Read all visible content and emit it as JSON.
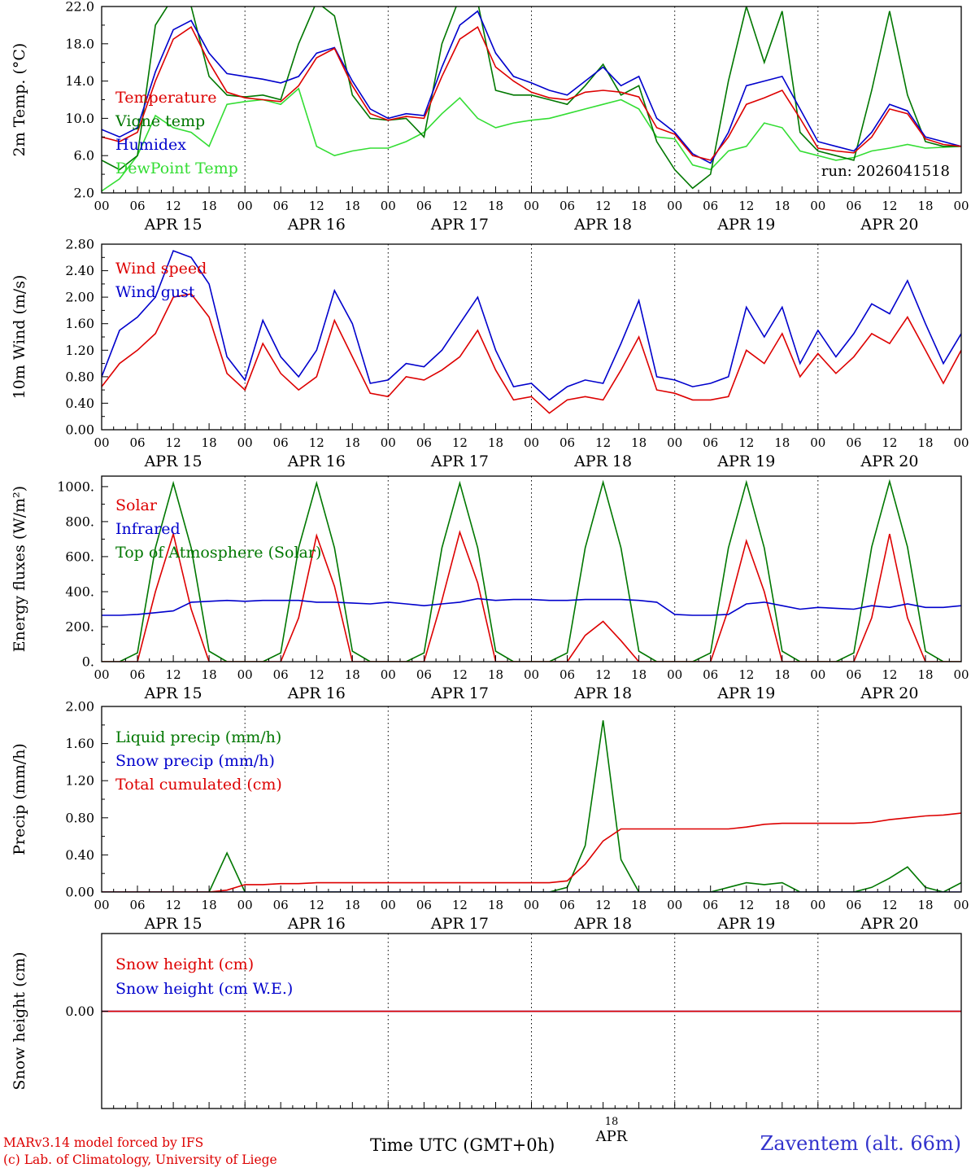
{
  "meta": {
    "run_label": "run: 2026041518",
    "footer_left1": "MARv3.14 model forced by IFS",
    "footer_left2": "(c) Lab. of Climatology, University of Liege",
    "footer_center": "Time UTC (GMT+0h)",
    "footer_date_top": "18",
    "footer_date_bottom": "APR",
    "footer_right": "Zaventem (alt. 66m)"
  },
  "x_axis": {
    "hours_start": 0,
    "hours_end": 144,
    "step": 3,
    "major_tick_hours": 6,
    "minor_tick_hours": 2,
    "hour_labels": [
      "00",
      "06",
      "12",
      "18"
    ],
    "day_labels": [
      "APR 15",
      "APR 16",
      "APR 17",
      "APR 18",
      "APR 19",
      "APR 20"
    ]
  },
  "chart_data": [
    {
      "type": "line",
      "ylabel": "2m Temp. (°C)",
      "ylim": [
        2,
        22
      ],
      "ytick_values": [
        2,
        6,
        10,
        14,
        18,
        22
      ],
      "ytick_labels": [
        "2.0",
        "6.0",
        "10.0",
        "14.0",
        "18.0",
        "22.0"
      ],
      "legend": [
        {
          "label": "Temperature",
          "color": "#dd0000"
        },
        {
          "label": "Vigne temp",
          "color": "#007700"
        },
        {
          "label": "Humidex",
          "color": "#0000cc"
        },
        {
          "label": "DewPoint Temp",
          "color": "#33dd33"
        }
      ],
      "annotation": {
        "text": "run: 2026041518"
      },
      "series": [
        {
          "name": "DewPoint Temp",
          "color": "#33dd33",
          "values": [
            2.2,
            3.5,
            6.0,
            10.3,
            9.0,
            8.5,
            7.0,
            11.5,
            11.8,
            12.0,
            11.5,
            13.2,
            7.0,
            6.0,
            6.5,
            6.8,
            6.8,
            7.5,
            8.5,
            10.5,
            12.2,
            10.0,
            9.0,
            9.5,
            9.8,
            10.0,
            10.5,
            11.0,
            11.5,
            12.0,
            11.0,
            8.0,
            7.8,
            5.0,
            4.5,
            6.5,
            7.0,
            9.5,
            9.0,
            6.5,
            6.0,
            5.5,
            5.8,
            6.5,
            6.8,
            7.2,
            6.8,
            6.9,
            7.0
          ]
        },
        {
          "name": "Vigne temp",
          "color": "#007700",
          "values": [
            5.5,
            4.5,
            6.0,
            20.0,
            23.0,
            22.0,
            14.5,
            12.5,
            12.3,
            12.5,
            12.0,
            18.0,
            22.5,
            21.0,
            12.5,
            10.0,
            9.8,
            10.0,
            8.0,
            18.0,
            23.0,
            22.5,
            13.0,
            12.5,
            12.5,
            12.0,
            11.5,
            13.5,
            15.8,
            12.5,
            13.5,
            7.5,
            4.5,
            2.5,
            4.0,
            14.0,
            22.0,
            16.0,
            21.5,
            8.5,
            6.5,
            6.0,
            5.5,
            13.0,
            21.5,
            12.5,
            7.5,
            7.0,
            7.0
          ]
        },
        {
          "name": "Humidex",
          "color": "#0000cc",
          "values": [
            8.8,
            8.0,
            9.0,
            15.0,
            19.5,
            20.5,
            17.0,
            14.8,
            14.5,
            14.2,
            13.8,
            14.5,
            17.0,
            17.6,
            14.0,
            11.0,
            10.0,
            10.5,
            10.3,
            15.5,
            20.0,
            21.5,
            17.0,
            14.5,
            13.8,
            13.0,
            12.5,
            14.0,
            15.5,
            13.5,
            14.5,
            10.0,
            8.5,
            6.2,
            5.2,
            8.5,
            13.5,
            14.0,
            14.5,
            11.0,
            7.5,
            7.0,
            6.5,
            8.5,
            11.5,
            10.8,
            8.0,
            7.5,
            7.0
          ]
        },
        {
          "name": "Temperature",
          "color": "#dd0000",
          "values": [
            8.0,
            7.5,
            8.5,
            14.0,
            18.5,
            19.8,
            16.0,
            12.8,
            12.2,
            12.0,
            11.8,
            13.5,
            16.5,
            17.5,
            13.5,
            10.5,
            9.8,
            10.2,
            10.0,
            14.5,
            18.5,
            19.8,
            15.5,
            14.0,
            12.8,
            12.2,
            12.0,
            12.8,
            13.0,
            12.8,
            12.3,
            9.0,
            8.3,
            6.0,
            5.5,
            8.0,
            11.5,
            12.2,
            13.0,
            10.0,
            6.8,
            6.5,
            6.3,
            8.0,
            11.0,
            10.5,
            7.8,
            7.2,
            7.0
          ]
        }
      ]
    },
    {
      "type": "line",
      "ylabel": "10m Wind (m/s)",
      "ylim": [
        0,
        2.8
      ],
      "ytick_values": [
        0,
        0.4,
        0.8,
        1.2,
        1.6,
        2.0,
        2.4,
        2.8
      ],
      "ytick_labels": [
        "0.00",
        "0.40",
        "0.80",
        "1.20",
        "1.60",
        "2.00",
        "2.40",
        "2.80"
      ],
      "legend": [
        {
          "label": "Wind speed",
          "color": "#dd0000"
        },
        {
          "label": "Wind gust",
          "color": "#0000cc"
        }
      ],
      "series": [
        {
          "name": "Wind gust",
          "color": "#0000cc",
          "values": [
            0.8,
            1.5,
            1.7,
            2.0,
            2.7,
            2.6,
            2.2,
            1.1,
            0.75,
            1.65,
            1.1,
            0.8,
            1.2,
            2.1,
            1.6,
            0.7,
            0.75,
            1.0,
            0.95,
            1.2,
            1.6,
            2.0,
            1.2,
            0.65,
            0.7,
            0.45,
            0.65,
            0.75,
            0.7,
            1.3,
            1.95,
            0.8,
            0.75,
            0.65,
            0.7,
            0.8,
            1.85,
            1.4,
            1.85,
            1.0,
            1.5,
            1.1,
            1.45,
            1.9,
            1.75,
            2.25,
            1.6,
            1.0,
            1.45
          ]
        },
        {
          "name": "Wind speed",
          "color": "#dd0000",
          "values": [
            0.65,
            1.0,
            1.2,
            1.45,
            2.0,
            2.05,
            1.7,
            0.85,
            0.6,
            1.3,
            0.85,
            0.6,
            0.8,
            1.65,
            1.1,
            0.55,
            0.5,
            0.8,
            0.75,
            0.9,
            1.1,
            1.5,
            0.9,
            0.45,
            0.5,
            0.25,
            0.45,
            0.5,
            0.45,
            0.9,
            1.4,
            0.6,
            0.55,
            0.45,
            0.45,
            0.5,
            1.2,
            1.0,
            1.45,
            0.8,
            1.15,
            0.85,
            1.1,
            1.45,
            1.3,
            1.7,
            1.2,
            0.7,
            1.2
          ]
        }
      ]
    },
    {
      "type": "line",
      "ylabel": "Energy fluxes (W/m²)",
      "ylim": [
        0,
        1060
      ],
      "ytick_values": [
        0,
        200,
        400,
        600,
        800,
        1000
      ],
      "ytick_labels": [
        "0.",
        "200.",
        "400.",
        "600.",
        "800.",
        "1000."
      ],
      "legend": [
        {
          "label": "Solar",
          "color": "#dd0000"
        },
        {
          "label": "Infrared",
          "color": "#0000cc"
        },
        {
          "label": "Top of Atmosphere (Solar)",
          "color": "#007700"
        }
      ],
      "series": [
        {
          "name": "Top of Atmosphere (Solar)",
          "color": "#007700",
          "values": [
            0,
            0,
            50,
            650,
            1020,
            650,
            60,
            0,
            0,
            0,
            50,
            650,
            1020,
            650,
            60,
            0,
            0,
            0,
            50,
            650,
            1020,
            650,
            60,
            0,
            0,
            0,
            50,
            650,
            1025,
            650,
            60,
            0,
            0,
            0,
            50,
            650,
            1025,
            650,
            60,
            0,
            0,
            0,
            50,
            655,
            1030,
            655,
            60,
            0,
            0
          ]
        },
        {
          "name": "Solar",
          "color": "#dd0000",
          "values": [
            0,
            0,
            0,
            400,
            730,
            300,
            0,
            0,
            0,
            0,
            0,
            250,
            720,
            430,
            0,
            0,
            0,
            0,
            0,
            350,
            740,
            450,
            0,
            0,
            0,
            0,
            0,
            150,
            230,
            120,
            0,
            0,
            0,
            0,
            0,
            300,
            690,
            400,
            0,
            0,
            0,
            0,
            0,
            250,
            730,
            250,
            0,
            0,
            0
          ]
        },
        {
          "name": "Infrared",
          "color": "#0000cc",
          "values": [
            265,
            265,
            270,
            280,
            290,
            340,
            345,
            350,
            345,
            350,
            350,
            350,
            340,
            340,
            335,
            330,
            340,
            330,
            320,
            330,
            340,
            360,
            350,
            355,
            355,
            350,
            350,
            355,
            355,
            355,
            350,
            340,
            270,
            265,
            265,
            270,
            330,
            340,
            320,
            300,
            310,
            305,
            300,
            320,
            310,
            330,
            310,
            310,
            320
          ]
        }
      ]
    },
    {
      "type": "line",
      "ylabel": "Precip (mm/h)",
      "ylim": [
        0,
        2.0
      ],
      "ytick_values": [
        0,
        0.4,
        0.8,
        1.2,
        1.6,
        2.0
      ],
      "ytick_labels": [
        "0.00",
        "0.40",
        "0.80",
        "1.20",
        "1.60",
        "2.00"
      ],
      "legend": [
        {
          "label": "Liquid precip (mm/h)",
          "color": "#007700"
        },
        {
          "label": "Snow precip (mm/h)",
          "color": "#0000cc"
        },
        {
          "label": "Total cumulated (cm)",
          "color": "#dd0000"
        }
      ],
      "series": [
        {
          "name": "Liquid precip (mm/h)",
          "color": "#007700",
          "values": [
            0,
            0,
            0,
            0,
            0,
            0,
            0,
            0.42,
            0,
            0,
            0,
            0,
            0,
            0,
            0,
            0,
            0,
            0,
            0,
            0,
            0,
            0,
            0,
            0,
            0,
            0,
            0.05,
            0.5,
            1.85,
            0.35,
            0,
            0,
            0,
            0,
            0,
            0.05,
            0.1,
            0.08,
            0.1,
            0,
            0,
            0,
            0,
            0.05,
            0.15,
            0.27,
            0.05,
            0,
            0.1
          ]
        },
        {
          "name": "Snow precip (mm/h)",
          "color": "#0000cc",
          "values": [
            0,
            0,
            0,
            0,
            0,
            0,
            0,
            0,
            0,
            0,
            0,
            0,
            0,
            0,
            0,
            0,
            0,
            0,
            0,
            0,
            0,
            0,
            0,
            0,
            0,
            0,
            0,
            0,
            0,
            0,
            0,
            0,
            0,
            0,
            0,
            0,
            0,
            0,
            0,
            0,
            0,
            0,
            0,
            0,
            0,
            0,
            0,
            0,
            0
          ]
        },
        {
          "name": "Total cumulated (cm)",
          "color": "#dd0000",
          "values": [
            0,
            0,
            0,
            0,
            0,
            0,
            0,
            0.02,
            0.08,
            0.08,
            0.09,
            0.09,
            0.1,
            0.1,
            0.1,
            0.1,
            0.1,
            0.1,
            0.1,
            0.1,
            0.1,
            0.1,
            0.1,
            0.1,
            0.1,
            0.1,
            0.12,
            0.3,
            0.55,
            0.68,
            0.68,
            0.68,
            0.68,
            0.68,
            0.68,
            0.68,
            0.7,
            0.73,
            0.74,
            0.74,
            0.74,
            0.74,
            0.74,
            0.75,
            0.78,
            0.8,
            0.82,
            0.83,
            0.85
          ]
        }
      ]
    },
    {
      "type": "line",
      "ylabel": "Snow height (cm)",
      "ylim": [
        -1.0,
        0.8
      ],
      "ytick_values": [
        0
      ],
      "ytick_labels": [
        "0.00"
      ],
      "legend": [
        {
          "label": "Snow height (cm)",
          "color": "#dd0000"
        },
        {
          "label": "Snow height (cm W.E.)",
          "color": "#0000cc"
        }
      ],
      "series": [
        {
          "name": "Snow height (cm W.E.)",
          "color": "#0000cc",
          "values": [
            0,
            0,
            0,
            0,
            0,
            0,
            0,
            0,
            0,
            0,
            0,
            0,
            0,
            0,
            0,
            0,
            0,
            0,
            0,
            0,
            0,
            0,
            0,
            0,
            0,
            0,
            0,
            0,
            0,
            0,
            0,
            0,
            0,
            0,
            0,
            0,
            0,
            0,
            0,
            0,
            0,
            0,
            0,
            0,
            0,
            0,
            0,
            0,
            0
          ]
        },
        {
          "name": "Snow height (cm)",
          "color": "#dd0000",
          "values": [
            0,
            0,
            0,
            0,
            0,
            0,
            0,
            0,
            0,
            0,
            0,
            0,
            0,
            0,
            0,
            0,
            0,
            0,
            0,
            0,
            0,
            0,
            0,
            0,
            0,
            0,
            0,
            0,
            0,
            0,
            0,
            0,
            0,
            0,
            0,
            0,
            0,
            0,
            0,
            0,
            0,
            0,
            0,
            0,
            0,
            0,
            0,
            0,
            0
          ]
        }
      ]
    }
  ]
}
